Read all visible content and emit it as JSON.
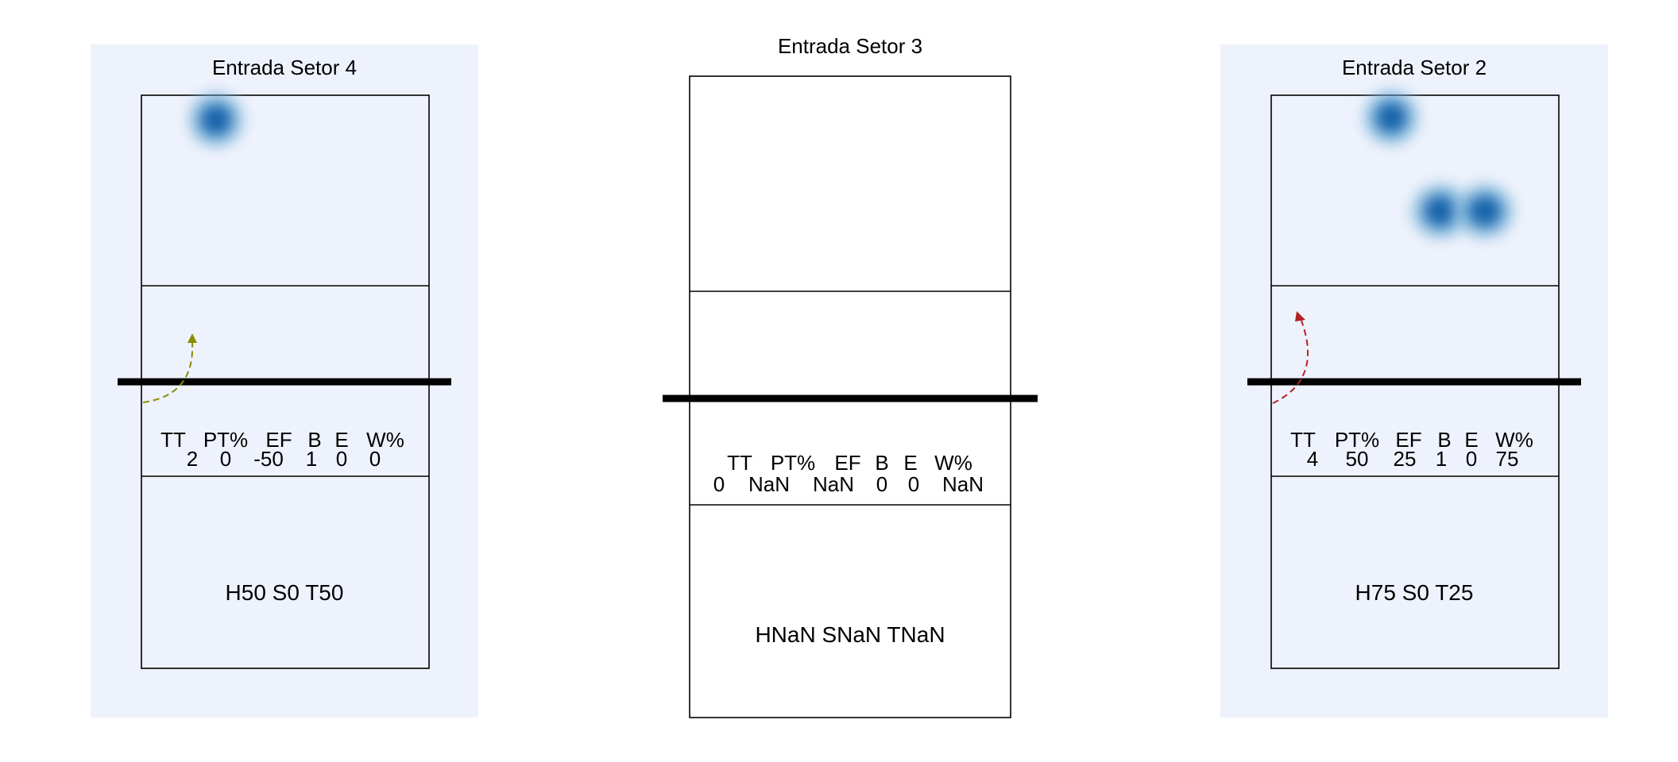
{
  "panels": [
    {
      "title": "Entrada Setor 4",
      "stats": {
        "headers": [
          "TT",
          "PT%",
          "EF",
          "B",
          "E",
          "W%"
        ],
        "values": [
          "2",
          "0",
          "-50",
          "1",
          "0",
          "0"
        ]
      },
      "distribution": "H50 S0 T50",
      "highlighted": true,
      "background_color": "#eef2fc",
      "trajectory_color": "#8b8b00",
      "heat_spots_count": 1
    },
    {
      "title": "Entrada Setor 3",
      "stats": {
        "headers": [
          "TT",
          "PT%",
          "EF",
          "B",
          "E",
          "W%"
        ],
        "values": [
          "0",
          "NaN",
          "NaN",
          "0",
          "0",
          "NaN"
        ]
      },
      "distribution": "HNaN SNaN TNaN",
      "highlighted": false,
      "background_color": "#ffffff",
      "trajectory_color": null,
      "heat_spots_count": 0
    },
    {
      "title": "Entrada Setor 2",
      "stats": {
        "headers": [
          "TT",
          "PT%",
          "EF",
          "B",
          "E",
          "W%"
        ],
        "values": [
          "4",
          "50",
          "25",
          "1",
          "0",
          "75"
        ]
      },
      "distribution": "H75 S0 T25",
      "highlighted": true,
      "background_color": "#eef2fc",
      "trajectory_color": "#b22222",
      "heat_spots_count": 3
    }
  ],
  "colors": {
    "heat_core": "#08519c",
    "heat_mid": "#4292c6",
    "heat_edge": "#c6dbef",
    "net": "#000000",
    "court_line": "#000000"
  }
}
